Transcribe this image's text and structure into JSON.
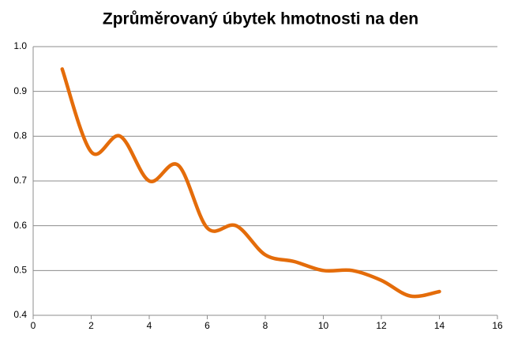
{
  "chart_data": {
    "type": "line",
    "title": "Zprůměrovaný úbytek hmotnosti na den",
    "x": [
      1,
      2,
      3,
      4,
      5,
      6,
      7,
      8,
      9,
      10,
      11,
      12,
      13,
      14
    ],
    "series": [
      {
        "color": "#e46c0a",
        "values": [
          0.95,
          0.765,
          0.8,
          0.7,
          0.735,
          0.595,
          0.6,
          0.535,
          0.52,
          0.5,
          0.5,
          0.478,
          0.443,
          0.453
        ]
      }
    ],
    "xlim": [
      0,
      16
    ],
    "xticks": [
      0,
      2,
      4,
      6,
      8,
      10,
      12,
      14,
      16
    ],
    "ylim": [
      0.4,
      1
    ],
    "yticks": [
      0.4,
      0.5,
      0.6,
      0.7,
      0.8,
      0.9,
      {
        "value": 1,
        "label": "1.0"
      }
    ],
    "grid": true,
    "smooth": true
  }
}
